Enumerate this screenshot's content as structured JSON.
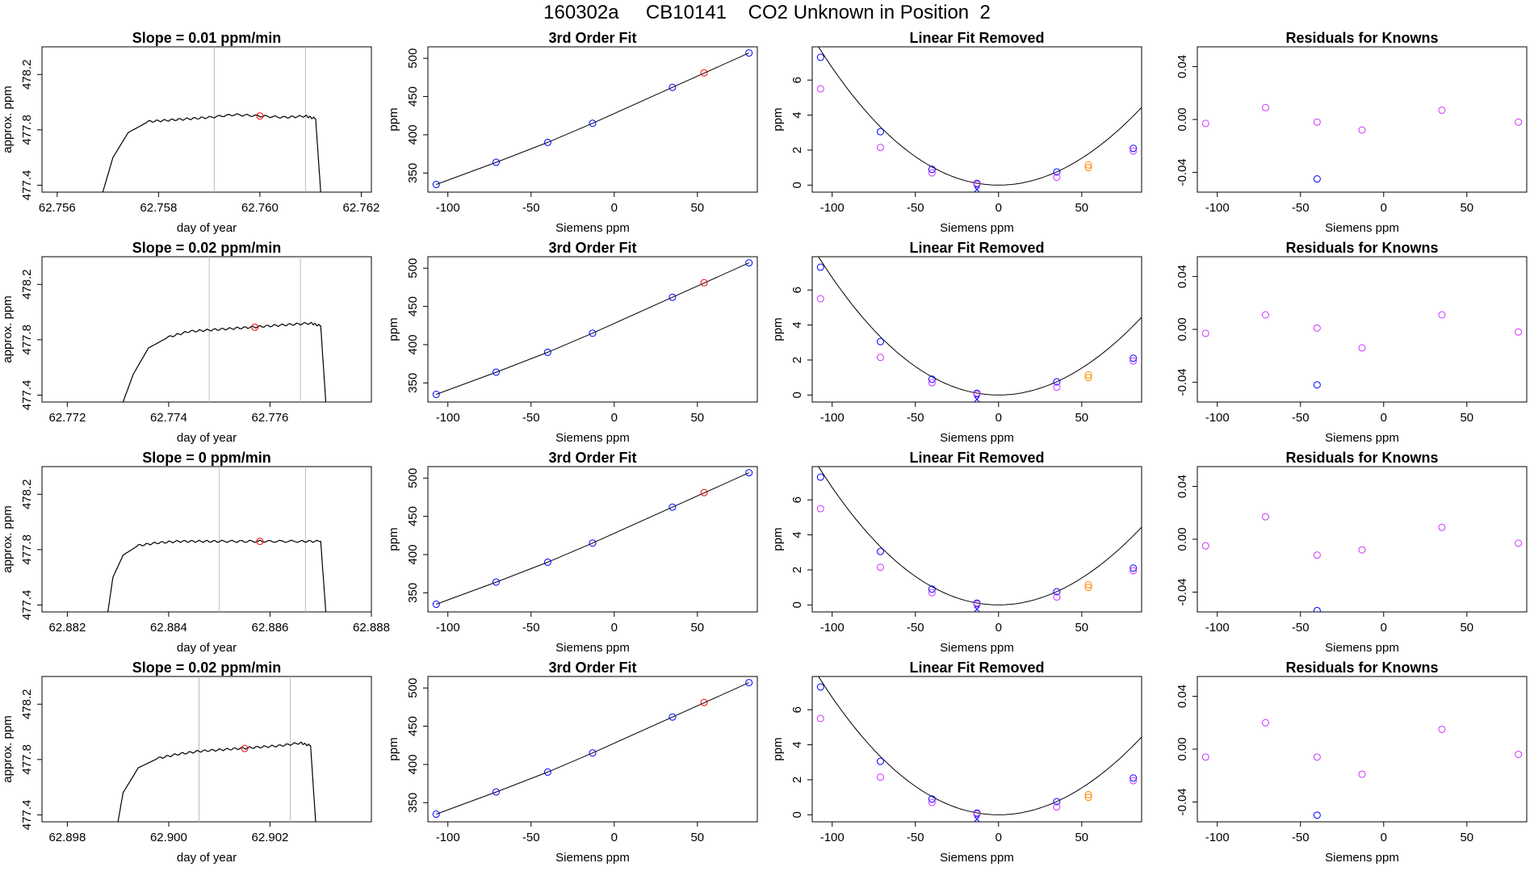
{
  "figure_title": "160302a     CB10141    CO2 Unknown in Position  2",
  "colors": {
    "trace": "#000000",
    "window_line": "#bbbbbb",
    "unknown_point": "#ff0000",
    "known_point": "#0000ff",
    "linear_removed_point": "#cc33ff",
    "unknown_residual": "#ff8800"
  },
  "chart_data": [
    {
      "type": "line",
      "title": "Slope =  0.01  ppm/min",
      "xlabel": "day of year",
      "ylabel": "approx. ppm",
      "xlim": [
        62.7557,
        62.7622
      ],
      "ylim": [
        477.35,
        478.4
      ],
      "xticks": [
        "62.756",
        "62.758",
        "62.760",
        "62.762"
      ],
      "yticks": [
        "477.4",
        "477.8",
        "478.2"
      ],
      "window": [
        62.7591,
        62.7609
      ],
      "series": [
        {
          "x": [
            62.7569,
            62.7571,
            62.7574,
            62.7578,
            62.7582,
            62.7586,
            62.759,
            62.7595,
            62.76,
            62.7605,
            62.7609,
            62.7611,
            62.7612
          ],
          "y": [
            477.35,
            477.6,
            477.78,
            477.86,
            477.87,
            477.88,
            477.89,
            477.91,
            477.9,
            477.89,
            477.9,
            477.88,
            477.35
          ]
        }
      ],
      "marker": {
        "x": 62.76,
        "y": 477.9
      }
    },
    {
      "type": "scatter",
      "title": "3rd Order Fit",
      "xlabel": "Siemens ppm",
      "ylabel": "ppm",
      "xlim": [
        -112,
        86
      ],
      "ylim": [
        325,
        515
      ],
      "xticks": [
        "-100",
        "-50",
        "0",
        "50"
      ],
      "yticks": [
        "350",
        "400",
        "450",
        "500"
      ],
      "series": [
        {
          "x": [
            -107,
            -71,
            -40,
            -13,
            35,
            81
          ],
          "y": [
            335,
            364,
            390,
            415,
            462,
            507
          ]
        },
        {
          "x": [
            54
          ],
          "y": [
            481
          ]
        }
      ]
    },
    {
      "type": "scatter",
      "title": "Linear Fit Removed",
      "xlabel": "Siemens ppm",
      "ylabel": "ppm",
      "xlim": [
        -112,
        86
      ],
      "ylim": [
        -0.4,
        7.9
      ],
      "xticks": [
        "-100",
        "-50",
        "0",
        "50"
      ],
      "yticks": [
        "0",
        "2",
        "4",
        "6"
      ],
      "series": [
        {
          "x": [
            -107,
            -71,
            -40,
            -13,
            35,
            81
          ],
          "y": [
            7.3,
            3.05,
            0.9,
            0.1,
            0.75,
            2.1
          ]
        },
        {
          "x": [
            -107,
            -71,
            -40,
            -13,
            35,
            81
          ],
          "y": [
            5.5,
            2.15,
            0.7,
            0.05,
            0.45,
            1.95
          ]
        },
        {
          "x": [
            54
          ],
          "y": [
            1.15
          ]
        },
        {
          "x": [
            54
          ],
          "y": [
            1.0
          ]
        }
      ]
    },
    {
      "type": "scatter",
      "title": "Residuals for Knowns",
      "xlabel": "Siemens ppm",
      "ylabel": "",
      "xlim": [
        -112,
        86
      ],
      "ylim": [
        -0.055,
        0.055
      ],
      "xticks": [
        "-100",
        "-50",
        "0",
        "50"
      ],
      "yticks": [
        "-0.04",
        "0.00",
        "0.04"
      ],
      "series": [
        {
          "x": [
            -107,
            -71,
            -40,
            -13,
            35,
            81
          ],
          "y": [
            -0.003,
            0.009,
            -0.002,
            -0.008,
            0.007,
            -0.002
          ]
        },
        {
          "x": [
            -40
          ],
          "y": [
            -0.045
          ]
        }
      ]
    },
    {
      "type": "line",
      "title": "Slope =  0.02  ppm/min",
      "xlabel": "day of year",
      "ylabel": "approx. ppm",
      "xlim": [
        62.7715,
        62.778
      ],
      "ylim": [
        477.35,
        478.4
      ],
      "xticks": [
        "62.772",
        "62.774",
        "62.776"
      ],
      "yticks": [
        "477.4",
        "477.8",
        "478.2"
      ],
      "window": [
        62.7748,
        62.7766
      ],
      "series": [
        {
          "x": [
            62.7731,
            62.7733,
            62.7736,
            62.774,
            62.7744,
            62.7748,
            62.7752,
            62.7756,
            62.776,
            62.7764,
            62.7768,
            62.777,
            62.7771
          ],
          "y": [
            477.35,
            477.55,
            477.74,
            477.82,
            477.86,
            477.87,
            477.88,
            477.89,
            477.9,
            477.91,
            477.92,
            477.9,
            477.35
          ]
        }
      ],
      "marker": {
        "x": 62.7757,
        "y": 477.89
      }
    },
    {
      "type": "scatter",
      "title": "3rd Order Fit",
      "xlabel": "Siemens ppm",
      "ylabel": "ppm",
      "xlim": [
        -112,
        86
      ],
      "ylim": [
        325,
        515
      ],
      "xticks": [
        "-100",
        "-50",
        "0",
        "50"
      ],
      "yticks": [
        "350",
        "400",
        "450",
        "500"
      ],
      "series": [
        {
          "x": [
            -107,
            -71,
            -40,
            -13,
            35,
            81
          ],
          "y": [
            335,
            364,
            390,
            415,
            462,
            507
          ]
        },
        {
          "x": [
            54
          ],
          "y": [
            481
          ]
        }
      ]
    },
    {
      "type": "scatter",
      "title": "Linear Fit Removed",
      "xlabel": "Siemens ppm",
      "ylabel": "ppm",
      "xlim": [
        -112,
        86
      ],
      "ylim": [
        -0.4,
        7.9
      ],
      "xticks": [
        "-100",
        "-50",
        "0",
        "50"
      ],
      "yticks": [
        "0",
        "2",
        "4",
        "6"
      ],
      "series": [
        {
          "x": [
            -107,
            -71,
            -40,
            -13,
            35,
            81
          ],
          "y": [
            7.3,
            3.05,
            0.9,
            0.1,
            0.75,
            2.1
          ]
        },
        {
          "x": [
            -107,
            -71,
            -40,
            -13,
            35,
            81
          ],
          "y": [
            5.5,
            2.15,
            0.7,
            0.05,
            0.45,
            1.95
          ]
        },
        {
          "x": [
            54
          ],
          "y": [
            1.15
          ]
        },
        {
          "x": [
            54
          ],
          "y": [
            1.0
          ]
        }
      ]
    },
    {
      "type": "scatter",
      "title": "Residuals for Knowns",
      "xlabel": "Siemens ppm",
      "ylabel": "",
      "xlim": [
        -112,
        86
      ],
      "ylim": [
        -0.055,
        0.055
      ],
      "xticks": [
        "-100",
        "-50",
        "0",
        "50"
      ],
      "yticks": [
        "-0.04",
        "0.00",
        "0.04"
      ],
      "series": [
        {
          "x": [
            -107,
            -71,
            -40,
            -13,
            35,
            81
          ],
          "y": [
            -0.003,
            0.011,
            0.001,
            -0.014,
            0.011,
            -0.002
          ]
        },
        {
          "x": [
            -40
          ],
          "y": [
            -0.042
          ]
        }
      ]
    },
    {
      "type": "line",
      "title": "Slope =  0  ppm/min",
      "xlabel": "day of year",
      "ylabel": "approx. ppm",
      "xlim": [
        62.8815,
        62.888
      ],
      "ylim": [
        477.35,
        478.4
      ],
      "xticks": [
        "62.882",
        "62.884",
        "62.886",
        "62.888"
      ],
      "yticks": [
        "477.4",
        "477.8",
        "478.2"
      ],
      "window": [
        62.885,
        62.8867
      ],
      "series": [
        {
          "x": [
            62.8828,
            62.8829,
            62.8831,
            62.8834,
            62.8838,
            62.8842,
            62.8846,
            62.885,
            62.8855,
            62.886,
            62.8866,
            62.887,
            62.8871
          ],
          "y": [
            477.35,
            477.6,
            477.76,
            477.83,
            477.85,
            477.86,
            477.86,
            477.86,
            477.86,
            477.86,
            477.86,
            477.86,
            477.35
          ]
        }
      ],
      "marker": {
        "x": 62.8858,
        "y": 477.86
      }
    },
    {
      "type": "scatter",
      "title": "3rd Order Fit",
      "xlabel": "Siemens ppm",
      "ylabel": "ppm",
      "xlim": [
        -112,
        86
      ],
      "ylim": [
        325,
        515
      ],
      "xticks": [
        "-100",
        "-50",
        "0",
        "50"
      ],
      "yticks": [
        "350",
        "400",
        "450",
        "500"
      ],
      "series": [
        {
          "x": [
            -107,
            -71,
            -40,
            -13,
            35,
            81
          ],
          "y": [
            335,
            364,
            390,
            415,
            462,
            507
          ]
        },
        {
          "x": [
            54
          ],
          "y": [
            481
          ]
        }
      ]
    },
    {
      "type": "scatter",
      "title": "Linear Fit Removed",
      "xlabel": "Siemens ppm",
      "ylabel": "ppm",
      "xlim": [
        -112,
        86
      ],
      "ylim": [
        -0.4,
        7.9
      ],
      "xticks": [
        "-100",
        "-50",
        "0",
        "50"
      ],
      "yticks": [
        "0",
        "2",
        "4",
        "6"
      ],
      "series": [
        {
          "x": [
            -107,
            -71,
            -40,
            -13,
            35,
            81
          ],
          "y": [
            7.3,
            3.05,
            0.9,
            0.1,
            0.75,
            2.1
          ]
        },
        {
          "x": [
            -107,
            -71,
            -40,
            -13,
            35,
            81
          ],
          "y": [
            5.5,
            2.15,
            0.7,
            0.05,
            0.45,
            1.95
          ]
        },
        {
          "x": [
            54
          ],
          "y": [
            1.15
          ]
        },
        {
          "x": [
            54
          ],
          "y": [
            1.0
          ]
        }
      ]
    },
    {
      "type": "scatter",
      "title": "Residuals for Knowns",
      "xlabel": "Siemens ppm",
      "ylabel": "",
      "xlim": [
        -112,
        86
      ],
      "ylim": [
        -0.055,
        0.055
      ],
      "xticks": [
        "-100",
        "-50",
        "0",
        "50"
      ],
      "yticks": [
        "-0.04",
        "0.00",
        "0.04"
      ],
      "series": [
        {
          "x": [
            -107,
            -71,
            -40,
            -13,
            35,
            81
          ],
          "y": [
            -0.005,
            0.017,
            -0.012,
            -0.008,
            0.009,
            -0.003
          ]
        },
        {
          "x": [
            -40
          ],
          "y": [
            -0.054
          ]
        }
      ]
    },
    {
      "type": "line",
      "title": "Slope =  0.02  ppm/min",
      "xlabel": "day of year",
      "ylabel": "approx. ppm",
      "xlim": [
        62.8975,
        62.904
      ],
      "ylim": [
        477.35,
        478.4
      ],
      "xticks": [
        "62.898",
        "62.900",
        "62.902"
      ],
      "yticks": [
        "477.4",
        "477.8",
        "478.2"
      ],
      "window": [
        62.9006,
        62.9024
      ],
      "series": [
        {
          "x": [
            62.899,
            62.8991,
            62.8994,
            62.8998,
            62.9002,
            62.9006,
            62.901,
            62.9014,
            62.9018,
            62.9022,
            62.9026,
            62.9028,
            62.9029
          ],
          "y": [
            477.35,
            477.56,
            477.74,
            477.81,
            477.84,
            477.86,
            477.87,
            477.88,
            477.89,
            477.9,
            477.92,
            477.9,
            477.35
          ]
        }
      ],
      "marker": {
        "x": 62.9015,
        "y": 477.88
      }
    },
    {
      "type": "scatter",
      "title": "3rd Order Fit",
      "xlabel": "Siemens ppm",
      "ylabel": "ppm",
      "xlim": [
        -112,
        86
      ],
      "ylim": [
        325,
        515
      ],
      "xticks": [
        "-100",
        "-50",
        "0",
        "50"
      ],
      "yticks": [
        "350",
        "400",
        "450",
        "500"
      ],
      "series": [
        {
          "x": [
            -107,
            -71,
            -40,
            -13,
            35,
            81
          ],
          "y": [
            335,
            364,
            390,
            415,
            462,
            507
          ]
        },
        {
          "x": [
            54
          ],
          "y": [
            481
          ]
        }
      ]
    },
    {
      "type": "scatter",
      "title": "Linear Fit Removed",
      "xlabel": "Siemens ppm",
      "ylabel": "ppm",
      "xlim": [
        -112,
        86
      ],
      "ylim": [
        -0.4,
        7.9
      ],
      "xticks": [
        "-100",
        "-50",
        "0",
        "50"
      ],
      "yticks": [
        "0",
        "2",
        "4",
        "6"
      ],
      "series": [
        {
          "x": [
            -107,
            -71,
            -40,
            -13,
            35,
            81
          ],
          "y": [
            7.3,
            3.05,
            0.9,
            0.1,
            0.75,
            2.1
          ]
        },
        {
          "x": [
            -107,
            -71,
            -40,
            -13,
            35,
            81
          ],
          "y": [
            5.5,
            2.15,
            0.7,
            0.05,
            0.45,
            1.95
          ]
        },
        {
          "x": [
            54
          ],
          "y": [
            1.15
          ]
        },
        {
          "x": [
            54
          ],
          "y": [
            1.0
          ]
        }
      ]
    },
    {
      "type": "scatter",
      "title": "Residuals for Knowns",
      "xlabel": "Siemens ppm",
      "ylabel": "",
      "xlim": [
        -112,
        86
      ],
      "ylim": [
        -0.055,
        0.055
      ],
      "xticks": [
        "-100",
        "-50",
        "0",
        "50"
      ],
      "yticks": [
        "-0.04",
        "0.00",
        "0.04"
      ],
      "series": [
        {
          "x": [
            -107,
            -71,
            -40,
            -13,
            35,
            81
          ],
          "y": [
            -0.006,
            0.02,
            -0.006,
            -0.019,
            0.015,
            -0.004
          ]
        },
        {
          "x": [
            -40
          ],
          "y": [
            -0.05
          ]
        }
      ]
    }
  ]
}
